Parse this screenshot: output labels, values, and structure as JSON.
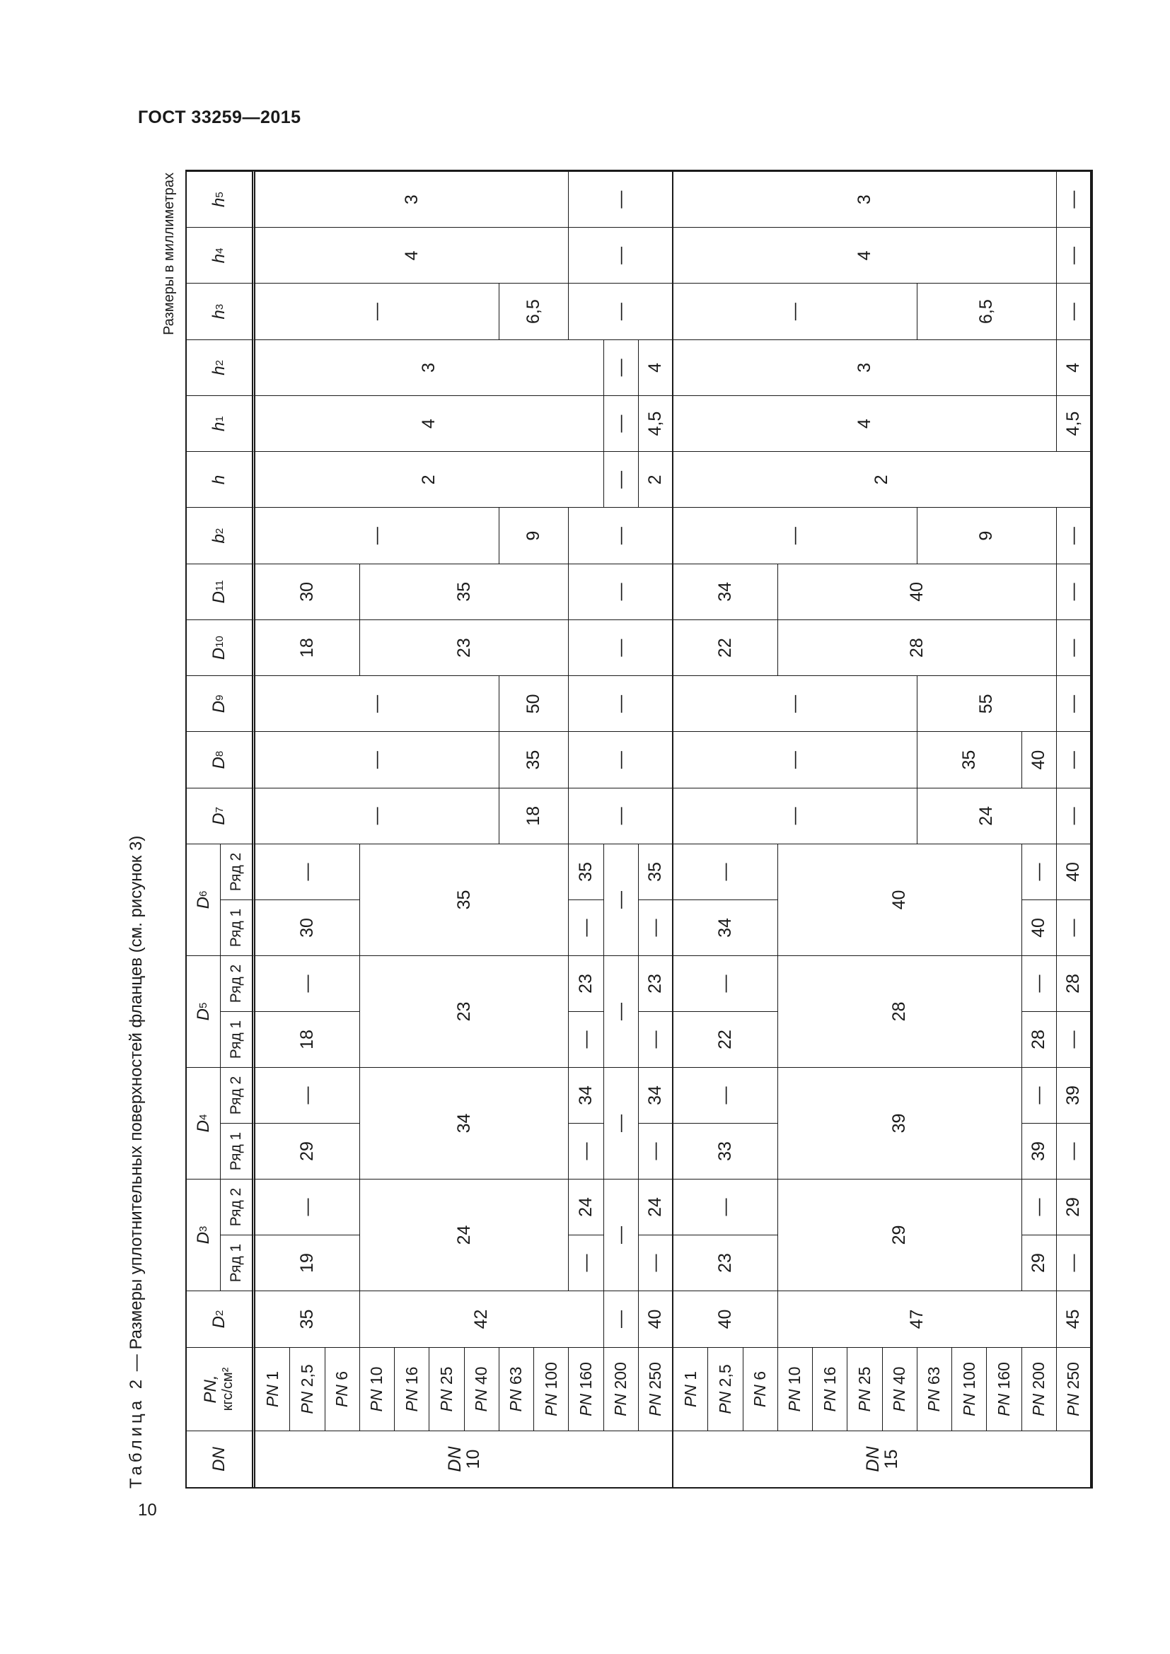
{
  "document": {
    "title": "ГОСТ 33259—2015",
    "page_number": "10"
  },
  "table": {
    "caption_lead": "Таблица 2",
    "caption_text": " — Размеры уплотнительных поверхностей фланцев (см. рисунок 3)",
    "units": "Размеры в миллиметрах",
    "header": [
      {
        "sym": "DN"
      },
      {
        "sym": "PN,",
        "unit": "кгс/см²"
      },
      {
        "sym": "D",
        "sub": "2"
      },
      {
        "sym": "D",
        "sub": "3",
        "rows": [
          "Ряд 1",
          "Ряд 2"
        ]
      },
      {
        "sym": "D",
        "sub": "4",
        "rows": [
          "Ряд 1",
          "Ряд 2"
        ]
      },
      {
        "sym": "D",
        "sub": "5",
        "rows": [
          "Ряд 1",
          "Ряд 2"
        ]
      },
      {
        "sym": "D",
        "sub": "6",
        "rows": [
          "Ряд 1",
          "Ряд 2"
        ]
      },
      {
        "sym": "D",
        "sub": "7"
      },
      {
        "sym": "D",
        "sub": "8"
      },
      {
        "sym": "D",
        "sub": "9"
      },
      {
        "sym": "D",
        "sub": "10"
      },
      {
        "sym": "D",
        "sub": "11"
      },
      {
        "sym": "b",
        "sub": "2"
      },
      {
        "sym": "h",
        "sub": ""
      },
      {
        "sym": "h",
        "sub": "1"
      },
      {
        "sym": "h",
        "sub": "2"
      },
      {
        "sym": "h",
        "sub": "3"
      },
      {
        "sym": "h",
        "sub": "4"
      },
      {
        "sym": "h",
        "sub": "5"
      }
    ],
    "pn_prefix": "PN",
    "blocks": [
      {
        "dn_label": "DN",
        "dn_value": "10",
        "pn": [
          "1",
          "2,5",
          "6",
          "10",
          "16",
          "25",
          "40",
          "63",
          "100",
          "160",
          "200",
          "250"
        ],
        "cols": [
          [
            [
              "35",
              3
            ],
            [
              "42",
              7
            ],
            [
              "—",
              1
            ],
            [
              "40",
              1
            ]
          ],
          [
            [
              "19",
              3
            ],
            [
              "24",
              6,
              2
            ],
            [
              "—",
              1
            ],
            [
              "—",
              1,
              2
            ],
            [
              "—",
              1
            ]
          ],
          [
            [
              "—",
              3
            ],
            [
              null,
              6
            ],
            [
              "24",
              1
            ],
            [
              null,
              1
            ],
            [
              "24",
              1
            ]
          ],
          [
            [
              "29",
              3
            ],
            [
              "34",
              6,
              2
            ],
            [
              "—",
              1
            ],
            [
              "—",
              1,
              2
            ],
            [
              "—",
              1
            ]
          ],
          [
            [
              "—",
              3
            ],
            [
              null,
              6
            ],
            [
              "34",
              1
            ],
            [
              null,
              1
            ],
            [
              "34",
              1
            ]
          ],
          [
            [
              "18",
              3
            ],
            [
              "23",
              6,
              2
            ],
            [
              "—",
              1
            ],
            [
              "—",
              1,
              2
            ],
            [
              "—",
              1
            ]
          ],
          [
            [
              "—",
              3
            ],
            [
              null,
              6
            ],
            [
              "23",
              1
            ],
            [
              null,
              1
            ],
            [
              "23",
              1
            ]
          ],
          [
            [
              "30",
              3
            ],
            [
              "35",
              6,
              2
            ],
            [
              "—",
              1
            ],
            [
              "—",
              1,
              2
            ],
            [
              "—",
              1
            ]
          ],
          [
            [
              "—",
              3
            ],
            [
              null,
              6
            ],
            [
              "35",
              1
            ],
            [
              null,
              1
            ],
            [
              "35",
              1
            ]
          ],
          [
            [
              "—",
              7
            ],
            [
              "18",
              2
            ],
            [
              "—",
              3
            ]
          ],
          [
            [
              "—",
              7
            ],
            [
              "35",
              2
            ],
            [
              "—",
              3
            ]
          ],
          [
            [
              "—",
              7
            ],
            [
              "50",
              2
            ],
            [
              "—",
              3
            ]
          ],
          [
            [
              "18",
              3
            ],
            [
              "23",
              6
            ],
            [
              "—",
              3
            ]
          ],
          [
            [
              "30",
              3
            ],
            [
              "35",
              6
            ],
            [
              "—",
              3
            ]
          ],
          [
            [
              "—",
              7
            ],
            [
              "9",
              2
            ],
            [
              "—",
              3
            ]
          ],
          [
            [
              "2",
              10
            ],
            [
              "—",
              1
            ],
            [
              "2",
              1
            ]
          ],
          [
            [
              "4",
              10
            ],
            [
              "—",
              1
            ],
            [
              "4,5",
              1
            ]
          ],
          [
            [
              "3",
              10
            ],
            [
              "—",
              1
            ],
            [
              "4",
              1
            ]
          ],
          [
            [
              "—",
              7
            ],
            [
              "6,5",
              2
            ],
            [
              "—",
              3
            ]
          ],
          [
            [
              "4",
              9
            ],
            [
              "—",
              3
            ]
          ],
          [
            [
              "3",
              9
            ],
            [
              "—",
              3
            ]
          ]
        ]
      },
      {
        "dn_label": "DN",
        "dn_value": "15",
        "pn": [
          "1",
          "2,5",
          "6",
          "10",
          "16",
          "25",
          "40",
          "63",
          "100",
          "160",
          "200",
          "250"
        ],
        "cols": [
          [
            [
              "40",
              3
            ],
            [
              "47",
              8
            ],
            [
              "45",
              1
            ]
          ],
          [
            [
              "23",
              3
            ],
            [
              "29",
              7,
              2
            ],
            [
              "29",
              1
            ],
            [
              "—",
              1
            ]
          ],
          [
            [
              "—",
              3
            ],
            [
              null,
              7
            ],
            [
              "—",
              1
            ],
            [
              "29",
              1
            ]
          ],
          [
            [
              "33",
              3
            ],
            [
              "39",
              7,
              2
            ],
            [
              "39",
              1
            ],
            [
              "—",
              1
            ]
          ],
          [
            [
              "—",
              3
            ],
            [
              null,
              7
            ],
            [
              "—",
              1
            ],
            [
              "39",
              1
            ]
          ],
          [
            [
              "22",
              3
            ],
            [
              "28",
              7,
              2
            ],
            [
              "28",
              1
            ],
            [
              "—",
              1
            ]
          ],
          [
            [
              "—",
              3
            ],
            [
              null,
              7
            ],
            [
              "—",
              1
            ],
            [
              "28",
              1
            ]
          ],
          [
            [
              "34",
              3
            ],
            [
              "40",
              7,
              2
            ],
            [
              "40",
              1
            ],
            [
              "—",
              1
            ]
          ],
          [
            [
              "—",
              3
            ],
            [
              null,
              7
            ],
            [
              "—",
              1
            ],
            [
              "40",
              1
            ]
          ],
          [
            [
              "—",
              7
            ],
            [
              "24",
              4
            ],
            [
              "—",
              1
            ]
          ],
          [
            [
              "—",
              7
            ],
            [
              "35",
              3
            ],
            [
              "40",
              1
            ],
            [
              "—",
              1
            ]
          ],
          [
            [
              "—",
              7
            ],
            [
              "55",
              4
            ],
            [
              "—",
              1
            ]
          ],
          [
            [
              "22",
              3
            ],
            [
              "28",
              8
            ],
            [
              "—",
              1
            ]
          ],
          [
            [
              "34",
              3
            ],
            [
              "40",
              8
            ],
            [
              "—",
              1
            ]
          ],
          [
            [
              "—",
              7
            ],
            [
              "9",
              4
            ],
            [
              "—",
              1
            ]
          ],
          [
            [
              "2",
              12
            ]
          ],
          [
            [
              "4",
              11
            ],
            [
              "4,5",
              1
            ]
          ],
          [
            [
              "3",
              11
            ],
            [
              "4",
              1
            ]
          ],
          [
            [
              "—",
              7
            ],
            [
              "6,5",
              4
            ],
            [
              "—",
              1
            ]
          ],
          [
            [
              "4",
              11
            ],
            [
              "—",
              1
            ]
          ],
          [
            [
              "3",
              11
            ],
            [
              "—",
              1
            ]
          ]
        ]
      }
    ]
  }
}
